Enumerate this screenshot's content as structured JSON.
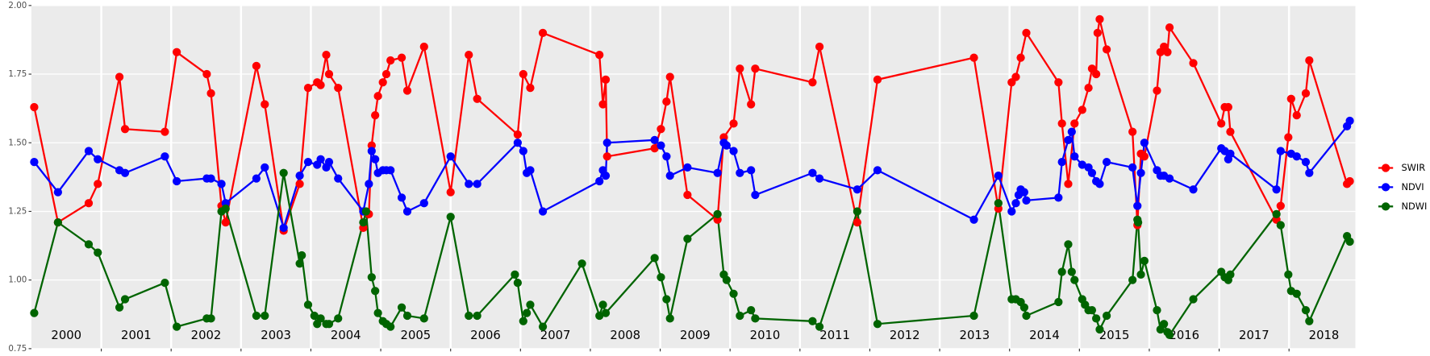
{
  "chart_data": {
    "type": "line",
    "xlim": [
      2000,
      2018.95
    ],
    "xticks": [
      2001,
      2002,
      2003,
      2004,
      2005,
      2006,
      2007,
      2008,
      2009,
      2010,
      2011,
      2012,
      2013,
      2014,
      2015,
      2016,
      2017,
      2018
    ],
    "ylim": [
      0.75,
      2.0
    ],
    "yticks": [
      0.75,
      {
        "value": 1.0,
        "label": "1.00"
      },
      1.25,
      {
        "value": 1.5,
        "label": "1.50"
      },
      1.75,
      {
        "value": 2.0,
        "label": "2.00"
      }
    ],
    "grid": true,
    "year_labels": [
      "2000",
      "2001",
      "2002",
      "2003",
      "2004",
      "2005",
      "2006",
      "2007",
      "2008",
      "2009",
      "2010",
      "2011",
      "2012",
      "2013",
      "2014",
      "2015",
      "2016",
      "2017",
      "2018"
    ],
    "legend_position": "right",
    "series": [
      {
        "name": "SWIR",
        "color": "#ff0000",
        "x": [
          2000.04,
          2000.38,
          2000.82,
          2000.95,
          2001.26,
          2001.34,
          2001.91,
          2002.08,
          2002.51,
          2002.57,
          2002.72,
          2002.78,
          2003.22,
          2003.34,
          2003.61,
          2003.84,
          2003.96,
          2004.09,
          2004.14,
          2004.22,
          2004.26,
          2004.39,
          2004.75,
          2004.83,
          2004.87,
          2004.92,
          2004.96,
          2005.03,
          2005.08,
          2005.14,
          2005.3,
          2005.38,
          2005.62,
          2006.0,
          2006.26,
          2006.38,
          2006.96,
          2007.04,
          2007.14,
          2007.32,
          2008.13,
          2008.18,
          2008.22,
          2008.24,
          2008.92,
          2009.01,
          2009.09,
          2009.14,
          2009.39,
          2009.82,
          2009.91,
          2010.05,
          2010.14,
          2010.3,
          2010.36,
          2011.18,
          2011.28,
          2011.82,
          2012.11,
          2013.49,
          2013.84,
          2014.03,
          2014.09,
          2014.16,
          2014.24,
          2014.7,
          2014.75,
          2014.84,
          2014.93,
          2015.04,
          2015.13,
          2015.18,
          2015.24,
          2015.26,
          2015.29,
          2015.39,
          2015.76,
          2015.83,
          2015.88,
          2015.93,
          2016.11,
          2016.16,
          2016.21,
          2016.26,
          2016.29,
          2016.63,
          2017.03,
          2017.08,
          2017.13,
          2017.16,
          2017.82,
          2017.88,
          2017.99,
          2018.03,
          2018.11,
          2018.24,
          2018.29,
          2018.83,
          2018.87
        ],
        "values": [
          1.63,
          1.21,
          1.28,
          1.35,
          1.74,
          1.55,
          1.54,
          1.83,
          1.75,
          1.68,
          1.27,
          1.21,
          1.78,
          1.64,
          1.18,
          1.35,
          1.7,
          1.72,
          1.71,
          1.82,
          1.75,
          1.7,
          1.19,
          1.24,
          1.49,
          1.6,
          1.67,
          1.72,
          1.75,
          1.8,
          1.81,
          1.69,
          1.85,
          1.32,
          1.82,
          1.66,
          1.53,
          1.75,
          1.7,
          1.9,
          1.82,
          1.64,
          1.73,
          1.45,
          1.48,
          1.55,
          1.65,
          1.74,
          1.31,
          1.22,
          1.52,
          1.57,
          1.77,
          1.64,
          1.77,
          1.72,
          1.85,
          1.21,
          1.73,
          1.81,
          1.26,
          1.72,
          1.74,
          1.81,
          1.9,
          1.72,
          1.57,
          1.35,
          1.57,
          1.62,
          1.7,
          1.77,
          1.75,
          1.9,
          1.95,
          1.84,
          1.54,
          1.2,
          1.46,
          1.45,
          1.69,
          1.83,
          1.85,
          1.83,
          1.92,
          1.79,
          1.57,
          1.63,
          1.63,
          1.54,
          1.22,
          1.27,
          1.52,
          1.66,
          1.6,
          1.68,
          1.8,
          1.35,
          1.36
        ]
      },
      {
        "name": "NDVI",
        "color": "#0000ff",
        "x": [
          2000.04,
          2000.38,
          2000.82,
          2000.95,
          2001.26,
          2001.34,
          2001.91,
          2002.08,
          2002.51,
          2002.57,
          2002.72,
          2002.78,
          2003.22,
          2003.34,
          2003.61,
          2003.84,
          2003.96,
          2004.09,
          2004.14,
          2004.22,
          2004.26,
          2004.39,
          2004.75,
          2004.83,
          2004.87,
          2004.92,
          2004.96,
          2005.03,
          2005.08,
          2005.14,
          2005.3,
          2005.38,
          2005.62,
          2006.0,
          2006.26,
          2006.38,
          2006.96,
          2007.04,
          2007.09,
          2007.14,
          2007.32,
          2008.13,
          2008.18,
          2008.22,
          2008.24,
          2008.92,
          2009.01,
          2009.09,
          2009.14,
          2009.39,
          2009.82,
          2009.91,
          2009.95,
          2010.05,
          2010.14,
          2010.3,
          2010.36,
          2011.18,
          2011.28,
          2011.82,
          2012.11,
          2013.49,
          2013.84,
          2014.03,
          2014.09,
          2014.13,
          2014.16,
          2014.21,
          2014.24,
          2014.7,
          2014.75,
          2014.84,
          2014.89,
          2014.93,
          2015.04,
          2015.13,
          2015.18,
          2015.24,
          2015.29,
          2015.39,
          2015.76,
          2015.83,
          2015.88,
          2015.93,
          2016.11,
          2016.16,
          2016.21,
          2016.29,
          2016.63,
          2017.03,
          2017.08,
          2017.13,
          2017.16,
          2017.82,
          2017.88,
          2018.03,
          2018.11,
          2018.24,
          2018.29,
          2018.83,
          2018.87
        ],
        "values": [
          1.43,
          1.32,
          1.47,
          1.44,
          1.4,
          1.39,
          1.45,
          1.36,
          1.37,
          1.37,
          1.35,
          1.28,
          1.37,
          1.41,
          1.19,
          1.38,
          1.43,
          1.42,
          1.44,
          1.41,
          1.43,
          1.37,
          1.25,
          1.35,
          1.47,
          1.44,
          1.39,
          1.4,
          1.4,
          1.4,
          1.3,
          1.25,
          1.28,
          1.45,
          1.35,
          1.35,
          1.5,
          1.47,
          1.39,
          1.4,
          1.25,
          1.36,
          1.4,
          1.38,
          1.5,
          1.51,
          1.49,
          1.45,
          1.38,
          1.41,
          1.39,
          1.5,
          1.49,
          1.47,
          1.39,
          1.4,
          1.31,
          1.39,
          1.37,
          1.33,
          1.4,
          1.22,
          1.38,
          1.25,
          1.28,
          1.31,
          1.33,
          1.32,
          1.29,
          1.3,
          1.43,
          1.51,
          1.54,
          1.45,
          1.42,
          1.41,
          1.39,
          1.36,
          1.35,
          1.43,
          1.41,
          1.27,
          1.39,
          1.5,
          1.4,
          1.38,
          1.38,
          1.37,
          1.33,
          1.48,
          1.47,
          1.44,
          1.46,
          1.33,
          1.47,
          1.46,
          1.45,
          1.43,
          1.39,
          1.56,
          1.58
        ]
      },
      {
        "name": "NDWI",
        "color": "#006400",
        "x": [
          2000.04,
          2000.38,
          2000.82,
          2000.95,
          2001.26,
          2001.34,
          2001.91,
          2002.08,
          2002.51,
          2002.57,
          2002.72,
          2002.78,
          2003.22,
          2003.34,
          2003.61,
          2003.84,
          2003.87,
          2003.96,
          2004.05,
          2004.09,
          2004.14,
          2004.22,
          2004.26,
          2004.39,
          2004.75,
          2004.79,
          2004.87,
          2004.92,
          2004.96,
          2005.03,
          2005.08,
          2005.14,
          2005.3,
          2005.38,
          2005.62,
          2006.0,
          2006.26,
          2006.38,
          2006.92,
          2006.96,
          2007.04,
          2007.09,
          2007.14,
          2007.32,
          2007.88,
          2008.13,
          2008.18,
          2008.22,
          2008.92,
          2009.01,
          2009.09,
          2009.14,
          2009.39,
          2009.82,
          2009.91,
          2009.95,
          2010.05,
          2010.14,
          2010.3,
          2010.36,
          2011.18,
          2011.28,
          2011.82,
          2012.11,
          2013.49,
          2013.84,
          2014.03,
          2014.09,
          2014.16,
          2014.21,
          2014.24,
          2014.7,
          2014.75,
          2014.84,
          2014.89,
          2014.93,
          2015.04,
          2015.08,
          2015.13,
          2015.18,
          2015.24,
          2015.29,
          2015.39,
          2015.76,
          2015.83,
          2015.84,
          2015.88,
          2015.93,
          2016.11,
          2016.16,
          2016.21,
          2016.26,
          2016.29,
          2016.63,
          2017.03,
          2017.08,
          2017.13,
          2017.16,
          2017.82,
          2017.88,
          2017.99,
          2018.03,
          2018.11,
          2018.24,
          2018.29,
          2018.83,
          2018.87
        ],
        "values": [
          0.88,
          1.21,
          1.13,
          1.1,
          0.9,
          0.93,
          0.99,
          0.83,
          0.86,
          0.86,
          1.25,
          1.26,
          0.87,
          0.87,
          1.39,
          1.06,
          1.09,
          0.91,
          0.87,
          0.84,
          0.86,
          0.84,
          0.84,
          0.86,
          1.21,
          1.25,
          1.01,
          0.96,
          0.88,
          0.85,
          0.84,
          0.83,
          0.9,
          0.87,
          0.86,
          1.23,
          0.87,
          0.87,
          1.02,
          0.99,
          0.85,
          0.88,
          0.91,
          0.83,
          1.06,
          0.87,
          0.91,
          0.88,
          1.08,
          1.01,
          0.93,
          0.86,
          1.15,
          1.24,
          1.02,
          1.0,
          0.95,
          0.87,
          0.89,
          0.86,
          0.85,
          0.83,
          1.25,
          0.84,
          0.87,
          1.28,
          0.93,
          0.93,
          0.92,
          0.9,
          0.87,
          0.92,
          1.03,
          1.13,
          1.03,
          1.0,
          0.93,
          0.91,
          0.89,
          0.89,
          0.86,
          0.82,
          0.87,
          1.0,
          1.22,
          1.21,
          1.02,
          1.07,
          0.89,
          0.82,
          0.84,
          0.81,
          0.8,
          0.93,
          1.03,
          1.01,
          1.0,
          1.02,
          1.24,
          1.2,
          1.02,
          0.96,
          0.95,
          0.89,
          0.85,
          1.16,
          1.14
        ]
      }
    ]
  }
}
